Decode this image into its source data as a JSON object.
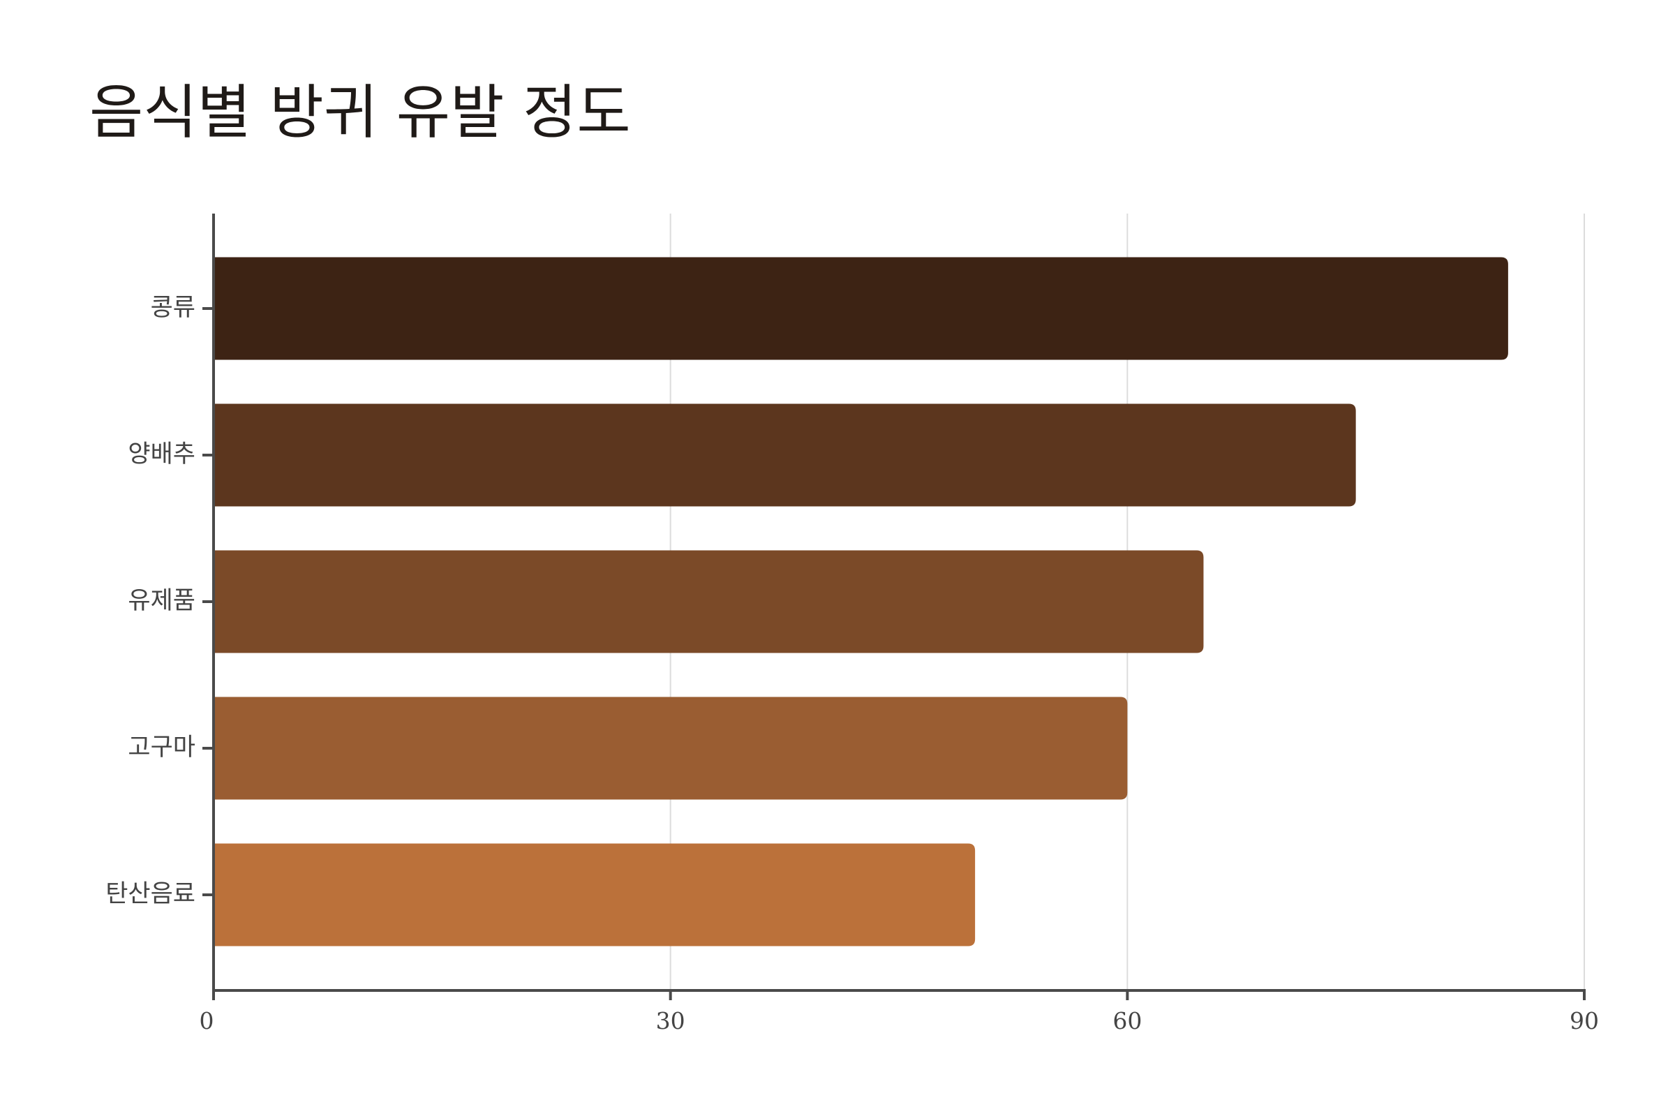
{
  "chart_data": {
    "type": "bar",
    "orientation": "horizontal",
    "title": "음식별 방귀 유발 정도",
    "categories": [
      "콩류",
      "양배추",
      "유제품",
      "고구마",
      "탄산음료"
    ],
    "values": [
      85,
      75,
      65,
      60,
      50
    ],
    "colors": [
      "#3d2314",
      "#5c361e",
      "#7b4a28",
      "#9a5d32",
      "#bb713a"
    ],
    "xlim": [
      0,
      90
    ],
    "xticks": [
      0,
      30,
      60,
      90
    ],
    "grid": true
  }
}
